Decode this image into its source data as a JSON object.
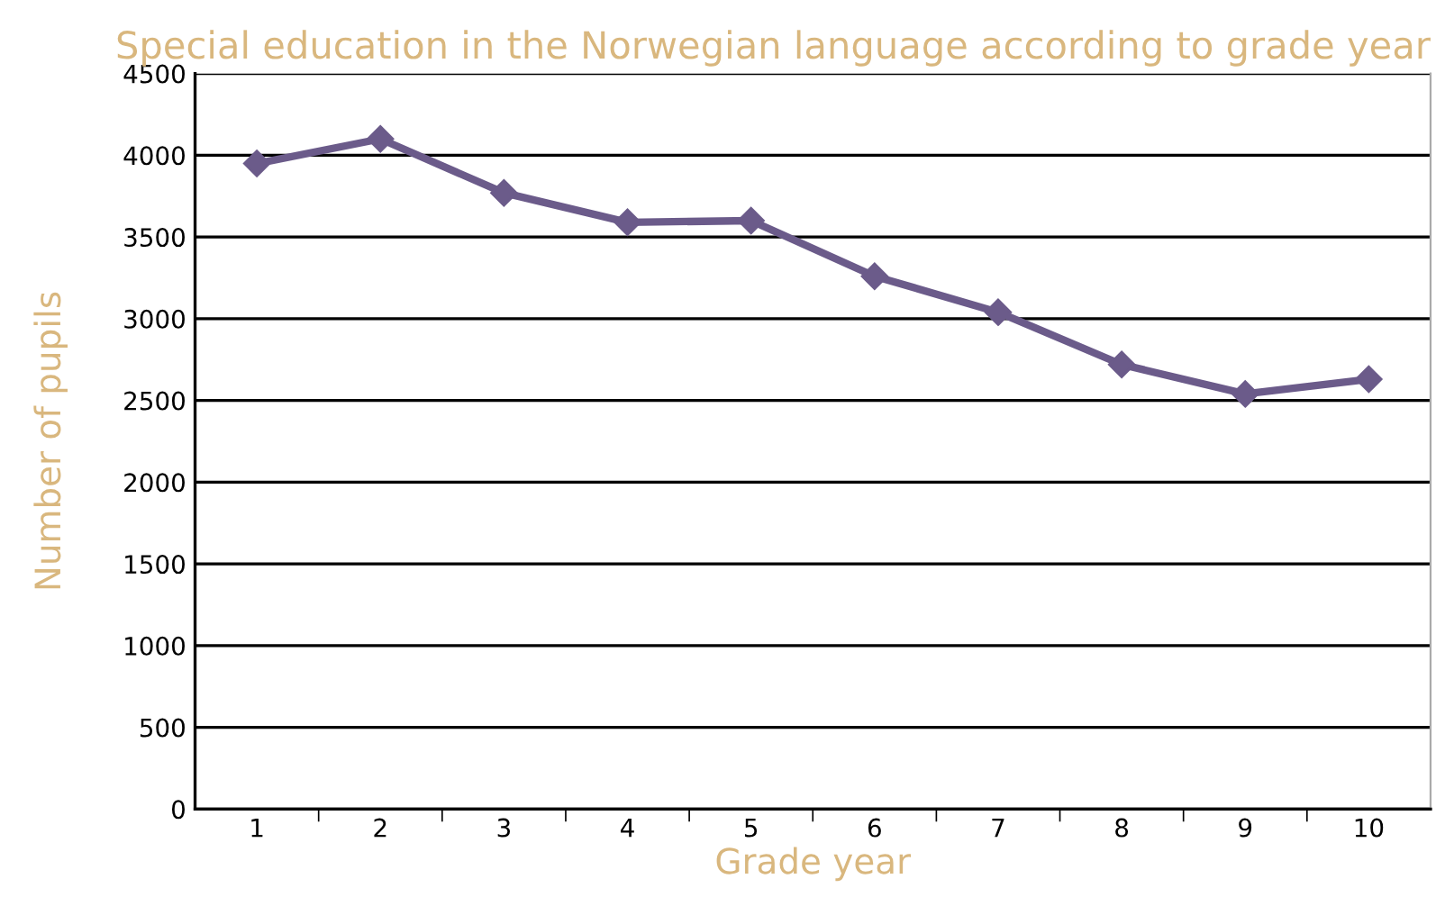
{
  "chart_data": {
    "type": "line",
    "title": "Special education in the Norwegian language according to grade year",
    "xlabel": "Grade year",
    "ylabel": "Number of pupils",
    "categories": [
      "1",
      "2",
      "3",
      "4",
      "5",
      "6",
      "7",
      "8",
      "9",
      "10"
    ],
    "series": [
      {
        "color": "#6b5b8a",
        "values": [
          3950,
          4100,
          3770,
          3590,
          3600,
          3260,
          3040,
          2720,
          2540,
          2630
        ]
      }
    ],
    "ylim": [
      0,
      4500
    ],
    "yticks": [
      0,
      500,
      1000,
      1500,
      2000,
      2500,
      3000,
      3500,
      4000,
      4500
    ],
    "grid": "y",
    "marker": "diamond",
    "line_style": "solid"
  }
}
